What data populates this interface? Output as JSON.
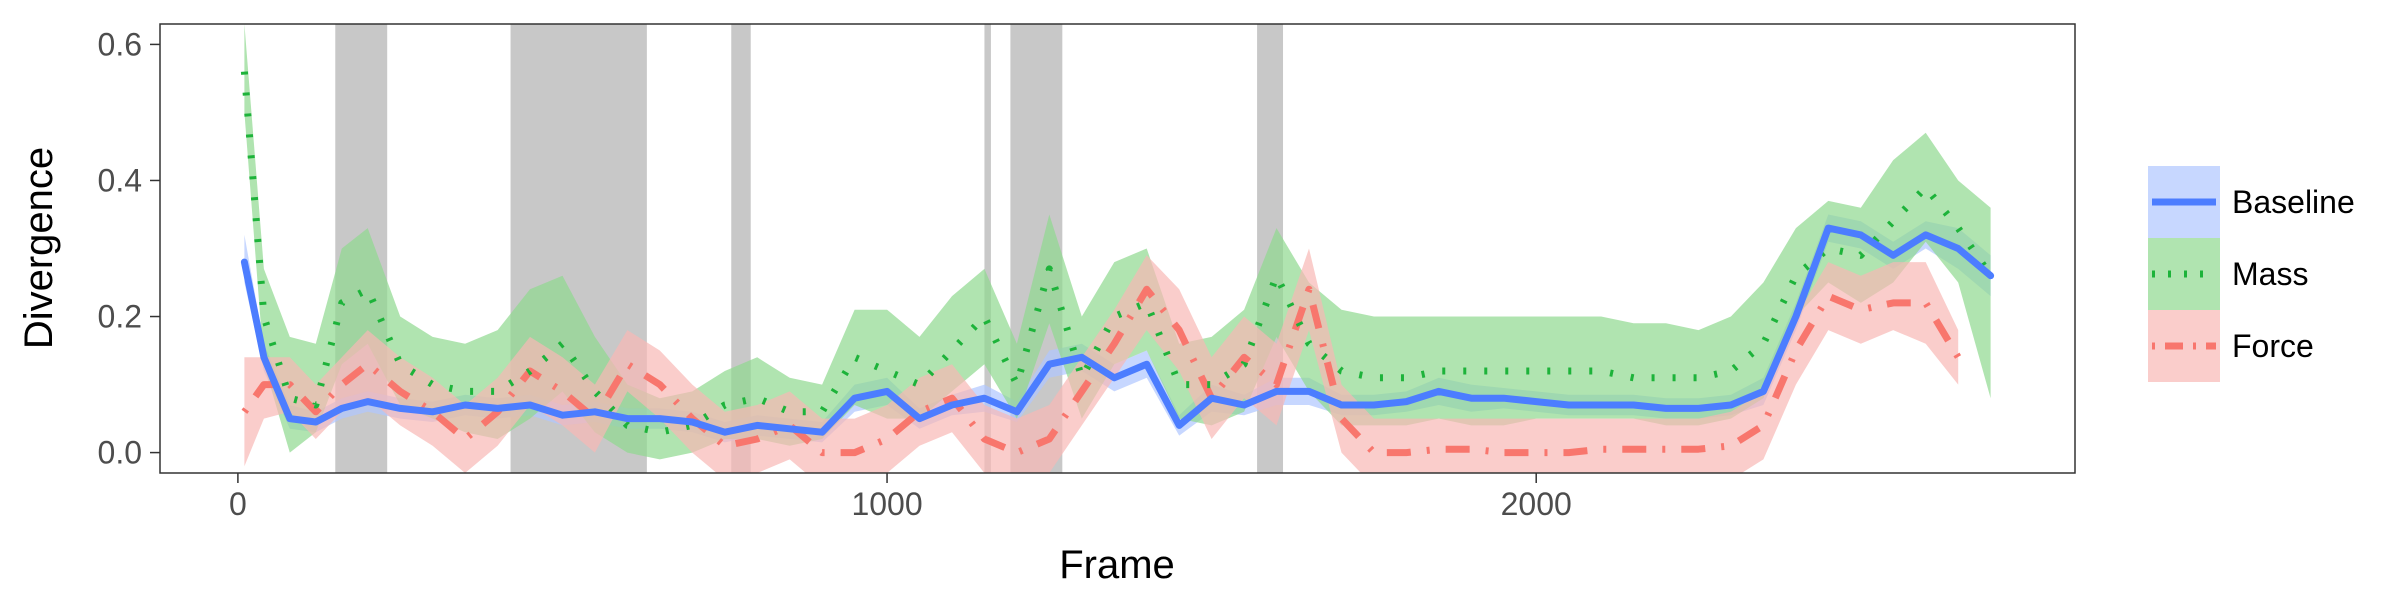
{
  "chart_data": {
    "type": "line",
    "xlabel": "Frame",
    "ylabel": "Divergence",
    "xlim": [
      -120,
      2830
    ],
    "ylim": [
      -0.03,
      0.63
    ],
    "x_ticks": [
      0,
      1000,
      2000
    ],
    "x_tick_labels": [
      "0",
      "1000",
      "2000"
    ],
    "y_ticks": [
      0.0,
      0.2,
      0.4,
      0.6
    ],
    "y_tick_labels": [
      "0.0",
      "0.2",
      "0.4",
      "0.6"
    ],
    "grid": false,
    "legend_position": "right",
    "shaded_regions": [
      [
        150,
        230
      ],
      [
        420,
        630
      ],
      [
        760,
        790
      ],
      [
        1150,
        1160
      ],
      [
        1190,
        1270
      ],
      [
        1570,
        1610
      ]
    ],
    "series": [
      {
        "name": "Baseline",
        "color": "#4C7DFF",
        "band_color": "#AFC6FF",
        "style": "solid",
        "x": [
          10,
          40,
          80,
          120,
          160,
          200,
          250,
          300,
          350,
          400,
          450,
          500,
          550,
          600,
          650,
          700,
          750,
          800,
          850,
          900,
          950,
          1000,
          1050,
          1100,
          1150,
          1200,
          1250,
          1300,
          1350,
          1400,
          1450,
          1500,
          1550,
          1600,
          1650,
          1700,
          1750,
          1800,
          1850,
          1900,
          1950,
          2000,
          2050,
          2100,
          2150,
          2200,
          2250,
          2300,
          2350,
          2400,
          2450,
          2500,
          2550,
          2600,
          2650,
          2700
        ],
        "y": [
          0.28,
          0.14,
          0.05,
          0.045,
          0.065,
          0.075,
          0.065,
          0.06,
          0.07,
          0.065,
          0.07,
          0.055,
          0.06,
          0.05,
          0.05,
          0.045,
          0.03,
          0.04,
          0.035,
          0.03,
          0.08,
          0.09,
          0.05,
          0.07,
          0.08,
          0.06,
          0.13,
          0.14,
          0.11,
          0.13,
          0.04,
          0.08,
          0.07,
          0.09,
          0.09,
          0.07,
          0.07,
          0.075,
          0.09,
          0.08,
          0.08,
          0.075,
          0.07,
          0.07,
          0.07,
          0.065,
          0.065,
          0.07,
          0.09,
          0.2,
          0.33,
          0.32,
          0.29,
          0.32,
          0.3,
          0.26
        ],
        "lower": [
          0.25,
          0.12,
          0.035,
          0.03,
          0.05,
          0.06,
          0.05,
          0.045,
          0.055,
          0.05,
          0.055,
          0.04,
          0.045,
          0.035,
          0.035,
          0.03,
          0.015,
          0.025,
          0.02,
          0.015,
          0.06,
          0.07,
          0.035,
          0.055,
          0.06,
          0.045,
          0.11,
          0.12,
          0.09,
          0.11,
          0.025,
          0.06,
          0.055,
          0.07,
          0.07,
          0.055,
          0.055,
          0.06,
          0.07,
          0.06,
          0.065,
          0.06,
          0.055,
          0.055,
          0.055,
          0.05,
          0.05,
          0.055,
          0.07,
          0.18,
          0.31,
          0.3,
          0.27,
          0.3,
          0.27,
          0.23
        ],
        "upper": [
          0.32,
          0.16,
          0.07,
          0.06,
          0.08,
          0.09,
          0.08,
          0.075,
          0.085,
          0.08,
          0.085,
          0.07,
          0.075,
          0.065,
          0.065,
          0.06,
          0.045,
          0.055,
          0.05,
          0.045,
          0.1,
          0.11,
          0.065,
          0.085,
          0.1,
          0.075,
          0.15,
          0.16,
          0.13,
          0.15,
          0.055,
          0.1,
          0.085,
          0.11,
          0.11,
          0.085,
          0.085,
          0.09,
          0.11,
          0.1,
          0.095,
          0.09,
          0.085,
          0.085,
          0.085,
          0.08,
          0.08,
          0.085,
          0.11,
          0.22,
          0.35,
          0.34,
          0.31,
          0.34,
          0.33,
          0.29
        ]
      },
      {
        "name": "Mass",
        "color": "#1DB33A",
        "band_color": "#8ED98E",
        "style": "dotted",
        "x": [
          10,
          40,
          80,
          120,
          160,
          200,
          250,
          300,
          350,
          400,
          450,
          500,
          550,
          600,
          650,
          700,
          750,
          800,
          850,
          900,
          950,
          1000,
          1050,
          1100,
          1150,
          1200,
          1250,
          1300,
          1350,
          1400,
          1450,
          1500,
          1550,
          1600,
          1650,
          1700,
          1750,
          1800,
          1850,
          1900,
          1950,
          2000,
          2050,
          2100,
          2150,
          2200,
          2250,
          2300,
          2350,
          2400,
          2450,
          2500,
          2550,
          2600,
          2650,
          2700
        ],
        "y": [
          0.56,
          0.2,
          0.08,
          0.07,
          0.22,
          0.24,
          0.13,
          0.1,
          0.09,
          0.09,
          0.12,
          0.16,
          0.09,
          0.04,
          0.03,
          0.04,
          0.07,
          0.08,
          0.06,
          0.06,
          0.14,
          0.12,
          0.1,
          0.15,
          0.2,
          0.1,
          0.27,
          0.11,
          0.2,
          0.22,
          0.1,
          0.1,
          0.13,
          0.26,
          0.16,
          0.12,
          0.11,
          0.11,
          0.12,
          0.12,
          0.12,
          0.12,
          0.12,
          0.12,
          0.11,
          0.11,
          0.11,
          0.12,
          0.16,
          0.26,
          0.3,
          0.29,
          0.34,
          0.39,
          0.33,
          0.26
        ],
        "lower": [
          0.5,
          0.13,
          0.0,
          0.03,
          0.13,
          0.16,
          0.07,
          0.05,
          0.03,
          0.02,
          0.05,
          0.09,
          0.03,
          0.0,
          -0.01,
          0.0,
          0.02,
          0.02,
          0.01,
          0.02,
          0.07,
          0.05,
          0.05,
          0.09,
          0.13,
          0.05,
          0.19,
          0.05,
          0.13,
          0.15,
          0.05,
          0.04,
          0.06,
          0.17,
          0.09,
          0.04,
          0.04,
          0.04,
          0.05,
          0.04,
          0.04,
          0.05,
          0.05,
          0.05,
          0.05,
          0.04,
          0.04,
          0.05,
          0.08,
          0.2,
          0.25,
          0.22,
          0.25,
          0.31,
          0.25,
          0.08
        ],
        "upper": [
          0.63,
          0.27,
          0.17,
          0.16,
          0.3,
          0.33,
          0.2,
          0.17,
          0.16,
          0.18,
          0.24,
          0.26,
          0.17,
          0.1,
          0.08,
          0.09,
          0.12,
          0.14,
          0.11,
          0.1,
          0.21,
          0.21,
          0.17,
          0.23,
          0.27,
          0.16,
          0.35,
          0.2,
          0.28,
          0.3,
          0.16,
          0.17,
          0.21,
          0.33,
          0.25,
          0.21,
          0.2,
          0.2,
          0.2,
          0.2,
          0.2,
          0.2,
          0.2,
          0.2,
          0.19,
          0.19,
          0.18,
          0.2,
          0.25,
          0.33,
          0.37,
          0.36,
          0.43,
          0.47,
          0.4,
          0.36
        ]
      },
      {
        "name": "Force",
        "color": "#F8766D",
        "band_color": "#F8B8B5",
        "style": "dotdash",
        "x": [
          10,
          40,
          80,
          120,
          160,
          200,
          250,
          300,
          350,
          400,
          450,
          500,
          550,
          600,
          650,
          700,
          750,
          800,
          850,
          900,
          950,
          1000,
          1050,
          1100,
          1150,
          1200,
          1250,
          1300,
          1350,
          1400,
          1450,
          1500,
          1550,
          1600,
          1650,
          1700,
          1750,
          1800,
          1850,
          1900,
          1950,
          2000,
          2050,
          2100,
          2150,
          2200,
          2250,
          2300,
          2350,
          2400,
          2450,
          2500,
          2550,
          2600,
          2650
        ],
        "y": [
          0.06,
          0.1,
          0.1,
          0.06,
          0.1,
          0.13,
          0.09,
          0.06,
          0.02,
          0.06,
          0.12,
          0.09,
          0.05,
          0.13,
          0.1,
          0.05,
          0.01,
          0.02,
          0.04,
          0.0,
          0.0,
          0.02,
          0.06,
          0.08,
          0.02,
          0.0,
          0.02,
          0.09,
          0.16,
          0.24,
          0.18,
          0.08,
          0.14,
          0.1,
          0.24,
          0.05,
          0.0,
          0.0,
          0.005,
          0.005,
          0.0,
          0.0,
          0.0,
          0.005,
          0.005,
          0.005,
          0.005,
          0.01,
          0.04,
          0.15,
          0.23,
          0.21,
          0.22,
          0.22,
          0.14
        ],
        "lower": [
          -0.02,
          0.05,
          0.06,
          0.02,
          0.06,
          0.08,
          0.04,
          0.01,
          -0.03,
          0.01,
          0.07,
          0.04,
          0.0,
          0.09,
          0.05,
          0.0,
          -0.04,
          -0.03,
          -0.01,
          -0.05,
          -0.05,
          -0.03,
          0.01,
          0.03,
          -0.03,
          -0.05,
          -0.03,
          0.04,
          0.11,
          0.18,
          0.12,
          0.02,
          0.08,
          0.04,
          0.18,
          0.0,
          -0.05,
          -0.05,
          -0.04,
          -0.04,
          -0.05,
          -0.05,
          -0.05,
          -0.04,
          -0.04,
          -0.04,
          -0.04,
          -0.04,
          -0.01,
          0.1,
          0.18,
          0.16,
          0.18,
          0.16,
          0.1
        ],
        "upper": [
          0.14,
          0.14,
          0.14,
          0.1,
          0.14,
          0.18,
          0.14,
          0.11,
          0.07,
          0.11,
          0.17,
          0.14,
          0.1,
          0.18,
          0.15,
          0.1,
          0.06,
          0.07,
          0.09,
          0.05,
          0.05,
          0.07,
          0.11,
          0.13,
          0.07,
          0.05,
          0.07,
          0.14,
          0.21,
          0.29,
          0.24,
          0.14,
          0.2,
          0.16,
          0.3,
          0.1,
          0.05,
          0.05,
          0.05,
          0.05,
          0.05,
          0.05,
          0.05,
          0.05,
          0.05,
          0.05,
          0.05,
          0.06,
          0.09,
          0.2,
          0.28,
          0.26,
          0.28,
          0.28,
          0.18
        ]
      }
    ]
  }
}
